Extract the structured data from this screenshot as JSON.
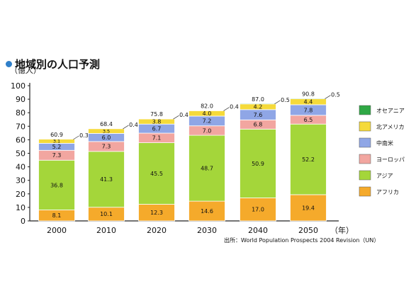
{
  "title": "地域別の人口予測",
  "source": "出所：World Population Prospects 2004 Revision（UN）",
  "colors": {
    "title_dot": "#2f7fc9",
    "オセアニア": "#2fa845",
    "北アメリカ": "#f5da3a",
    "中南米": "#8fa6e6",
    "ヨーロッパ": "#f2a6a0",
    "アジア": "#a4d63a",
    "アフリカ": "#f5aa2b"
  },
  "chart_data": {
    "type": "bar",
    "stacked": true,
    "title": "地域別の人口予測",
    "ylabel": "（億人）",
    "xlabel": "（年）",
    "ylim": [
      0,
      100
    ],
    "yticks": [
      0,
      10,
      20,
      30,
      40,
      50,
      60,
      70,
      80,
      90,
      100
    ],
    "categories": [
      "2000",
      "2010",
      "2020",
      "2030",
      "2040",
      "2050"
    ],
    "series": [
      {
        "name": "アフリカ",
        "values": [
          8.1,
          10.1,
          12.3,
          14.6,
          17.0,
          19.4
        ]
      },
      {
        "name": "アジア",
        "values": [
          36.8,
          41.3,
          45.5,
          48.7,
          50.9,
          52.2
        ]
      },
      {
        "name": "ヨーロッパ",
        "values": [
          7.3,
          7.3,
          7.1,
          7.0,
          6.8,
          6.5
        ]
      },
      {
        "name": "中南米",
        "values": [
          5.2,
          6.0,
          6.7,
          7.2,
          7.6,
          7.8
        ]
      },
      {
        "name": "北アメリカ",
        "values": [
          3.1,
          3.5,
          3.8,
          4.0,
          4.2,
          4.4
        ]
      },
      {
        "name": "オセアニア",
        "values": [
          0.3,
          0.4,
          0.4,
          0.4,
          0.5,
          0.5
        ]
      }
    ],
    "totals": [
      60.9,
      68.4,
      75.8,
      82.0,
      87.0,
      90.8
    ],
    "legend": [
      "オセアニア",
      "北アメリカ",
      "中南米",
      "ヨーロッパ",
      "アジア",
      "アフリカ"
    ],
    "legend_position": "right",
    "grid": false
  }
}
